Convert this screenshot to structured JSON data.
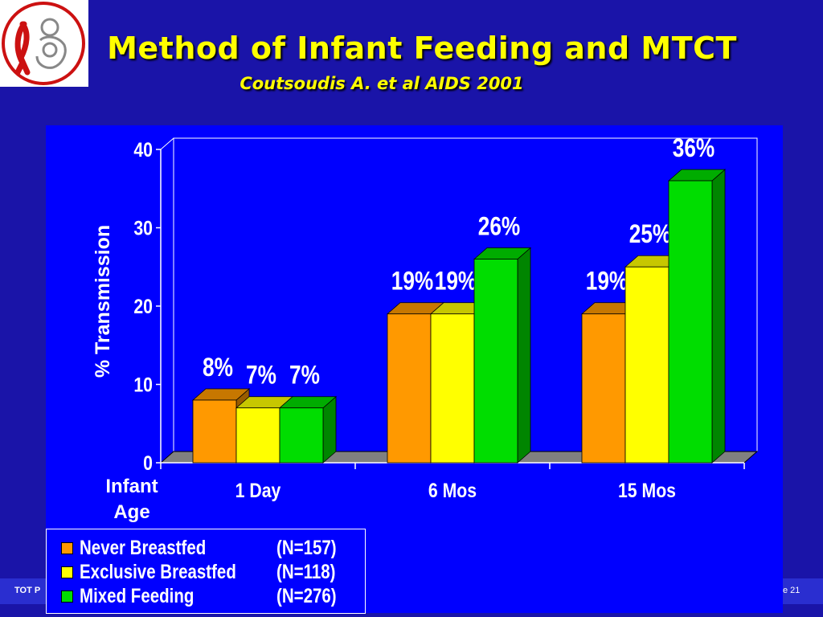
{
  "slide": {
    "title": "Method of Infant Feeding and  MTCT",
    "subtitle": "Coutsoudis A. et al AIDS 2001",
    "footer_left": "TOT P",
    "footer_right": "e 21"
  },
  "colors": {
    "background": "#1a14a8",
    "title": "#ffff00",
    "plot_area": "#0000ff"
  },
  "logo": {
    "icon": "red-ribbon-mother-child-logo"
  },
  "chart_data": {
    "type": "bar",
    "title": "",
    "xlabel": "Infant Age",
    "ylabel": "% Transmission",
    "ylim": [
      0,
      40
    ],
    "yticks": [
      "0",
      "10",
      "20",
      "30",
      "40"
    ],
    "categories": [
      "1 Day",
      "6 Mos",
      "15 Mos"
    ],
    "grid": false,
    "legend_position": "bottom-left",
    "series": [
      {
        "name": "Never Breastfed",
        "n_label": "(N=157)",
        "values": [
          8,
          19,
          19
        ],
        "labels": [
          "8%",
          "19%",
          "19%"
        ],
        "color": "#ff9900"
      },
      {
        "name": "Exclusive Breastfed",
        "n_label": "(N=118)",
        "values": [
          7,
          19,
          25
        ],
        "labels": [
          "7%",
          "19%",
          "25%"
        ],
        "color": "#ffff00"
      },
      {
        "name": "Mixed Feeding",
        "n_label": "(N=276)",
        "values": [
          7,
          26,
          36
        ],
        "labels": [
          "7%",
          "26%",
          "36%"
        ],
        "color": "#00dd00"
      }
    ]
  }
}
